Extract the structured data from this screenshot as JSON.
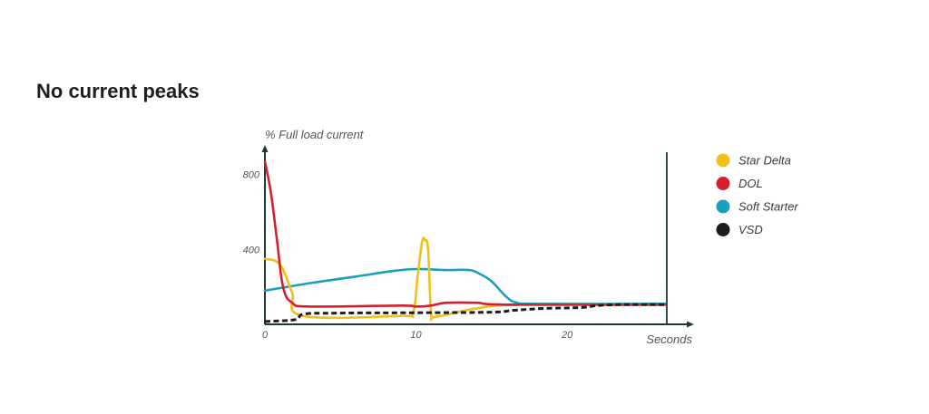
{
  "page": {
    "title": "No current peaks"
  },
  "chart_data": {
    "type": "line",
    "title": "",
    "ylabel": "% Full load current",
    "xlabel": "Seconds",
    "xlim": [
      0,
      27
    ],
    "ylim": [
      0,
      900
    ],
    "x_ticks": [
      {
        "value": 0,
        "label": "0"
      },
      {
        "value": 10,
        "label": "10"
      },
      {
        "value": 20,
        "label": "20"
      }
    ],
    "y_ticks": [
      {
        "value": 800,
        "label": "800"
      },
      {
        "value": 400,
        "label": "400"
      }
    ],
    "grid": false,
    "legend_position": "right",
    "series": [
      {
        "name": "Star Delta",
        "color": "#f2c01b",
        "dash": false,
        "points": [
          [
            0,
            350
          ],
          [
            1.0,
            320
          ],
          [
            1.8,
            170
          ],
          [
            2.5,
            45
          ],
          [
            9.0,
            45
          ],
          [
            9.8,
            60
          ],
          [
            10.1,
            250
          ],
          [
            10.4,
            440
          ],
          [
            10.6,
            450
          ],
          [
            10.8,
            400
          ],
          [
            11.0,
            60
          ],
          [
            11.3,
            40
          ],
          [
            14.0,
            85
          ],
          [
            17.0,
            105
          ],
          [
            26.5,
            105
          ]
        ]
      },
      {
        "name": "DOL",
        "color": "#d4202e",
        "dash": false,
        "points": [
          [
            0,
            870
          ],
          [
            0.4,
            700
          ],
          [
            0.8,
            450
          ],
          [
            1.2,
            200
          ],
          [
            1.8,
            115
          ],
          [
            3.0,
            95
          ],
          [
            9.0,
            100
          ],
          [
            10.0,
            95
          ],
          [
            11.0,
            100
          ],
          [
            12.0,
            115
          ],
          [
            14.0,
            115
          ],
          [
            16.0,
            105
          ],
          [
            26.5,
            105
          ]
        ]
      },
      {
        "name": "Soft Starter",
        "color": "#1aa0bd",
        "dash": false,
        "points": [
          [
            0,
            180
          ],
          [
            3.0,
            220
          ],
          [
            6.0,
            255
          ],
          [
            8.5,
            285
          ],
          [
            10.0,
            295
          ],
          [
            12.0,
            290
          ],
          [
            13.5,
            290
          ],
          [
            14.2,
            270
          ],
          [
            15.0,
            230
          ],
          [
            16.0,
            145
          ],
          [
            16.7,
            115
          ],
          [
            18.0,
            110
          ],
          [
            26.5,
            110
          ]
        ]
      },
      {
        "name": "VSD",
        "color": "#1c1c1c",
        "dash": true,
        "points": [
          [
            0,
            15
          ],
          [
            2.0,
            25
          ],
          [
            2.6,
            55
          ],
          [
            5.0,
            60
          ],
          [
            10.0,
            62
          ],
          [
            15.0,
            65
          ],
          [
            16.5,
            75
          ],
          [
            18.5,
            85
          ],
          [
            21.0,
            90
          ],
          [
            22.0,
            100
          ],
          [
            23.5,
            105
          ],
          [
            26.5,
            105
          ]
        ]
      }
    ]
  }
}
